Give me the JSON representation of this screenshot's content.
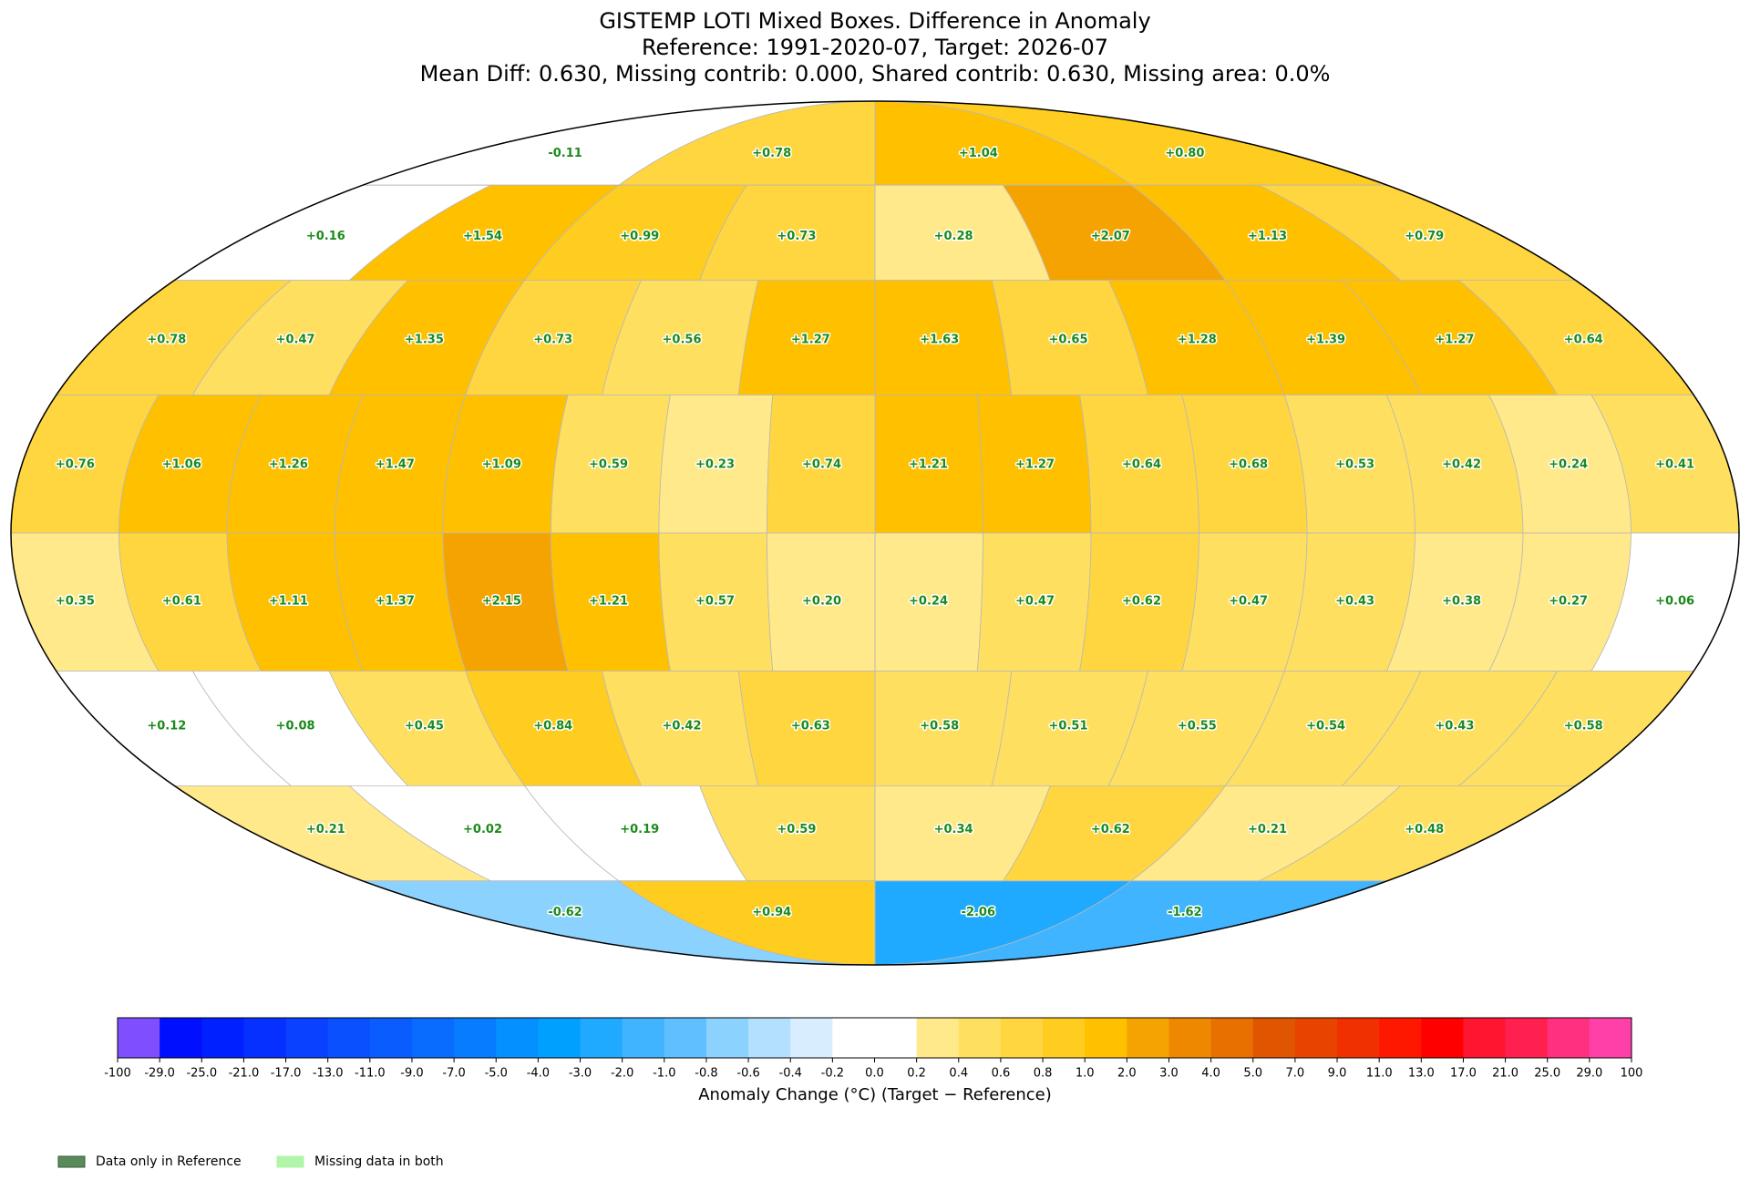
{
  "chart_data": {
    "type": "map",
    "title": "GISTEMP LOTI Mixed Boxes. Difference in Anomaly",
    "subtitle": [
      "Reference: 1991-2020-07, Target: 2026-07",
      "Mean Diff: 0.630, Missing contrib: 0.000, Shared contrib: 0.630, Missing area: 0.0%"
    ],
    "bands": [
      {
        "values": [
          -0.11,
          0.78,
          1.04,
          0.8
        ],
        "value_labels": [
          "-0.11",
          "+0.78",
          "+1.04",
          "+0.80"
        ]
      },
      {
        "values": [
          0.16,
          1.54,
          0.99,
          0.73,
          0.28,
          2.07,
          1.13,
          0.79
        ],
        "value_labels": [
          "+0.16",
          "+1.54",
          "+0.99",
          "+0.73",
          "+0.28",
          "+2.07",
          "+1.13",
          "+0.79"
        ]
      },
      {
        "values": [
          0.78,
          0.47,
          1.35,
          0.73,
          0.56,
          1.27,
          1.63,
          0.65,
          1.28,
          1.39,
          1.27,
          0.64
        ],
        "value_labels": [
          "+0.78",
          "+0.47",
          "+1.35",
          "+0.73",
          "+0.56",
          "+1.27",
          "+1.63",
          "+0.65",
          "+1.28",
          "+1.39",
          "+1.27",
          "+0.64"
        ]
      },
      {
        "values": [
          0.76,
          1.06,
          1.26,
          1.47,
          1.09,
          0.59,
          0.23,
          0.74,
          1.21,
          1.27,
          0.64,
          0.68,
          0.53,
          0.42,
          0.24,
          0.41
        ],
        "value_labels": [
          "+0.76",
          "+1.06",
          "+1.26",
          "+1.47",
          "+1.09",
          "+0.59",
          "+0.23",
          "+0.74",
          "+1.21",
          "+1.27",
          "+0.64",
          "+0.68",
          "+0.53",
          "+0.42",
          "+0.24",
          "+0.41"
        ]
      },
      {
        "values": [
          0.35,
          0.61,
          1.11,
          1.37,
          2.15,
          1.21,
          0.57,
          0.2,
          0.24,
          0.47,
          0.62,
          0.47,
          0.43,
          0.38,
          0.27,
          0.06
        ],
        "value_labels": [
          "+0.35",
          "+0.61",
          "+1.11",
          "+1.37",
          "+2.15",
          "+1.21",
          "+0.57",
          "+0.20",
          "+0.24",
          "+0.47",
          "+0.62",
          "+0.47",
          "+0.43",
          "+0.38",
          "+0.27",
          "+0.06"
        ]
      },
      {
        "values": [
          0.12,
          0.08,
          0.45,
          0.84,
          0.42,
          0.63,
          0.58,
          0.51,
          0.55,
          0.54,
          0.43,
          0.58
        ],
        "value_labels": [
          "+0.12",
          "+0.08",
          "+0.45",
          "+0.84",
          "+0.42",
          "+0.63",
          "+0.58",
          "+0.51",
          "+0.55",
          "+0.54",
          "+0.43",
          "+0.58"
        ]
      },
      {
        "values": [
          0.21,
          0.02,
          0.19,
          0.59,
          0.34,
          0.62,
          0.21,
          0.48
        ],
        "value_labels": [
          "+0.21",
          "+0.02",
          "+0.19",
          "+0.59",
          "+0.34",
          "+0.62",
          "+0.21",
          "+0.48"
        ]
      },
      {
        "values": [
          -0.62,
          0.94,
          -2.06,
          -1.62
        ],
        "value_labels": [
          "-0.62",
          "+0.94",
          "-2.06",
          "-1.62"
        ]
      }
    ],
    "colorbar": {
      "label": "Anomaly Change (°C) (Target − Reference)",
      "ticks": [
        -100,
        {
          "value": -29,
          "label": "-29.0"
        },
        {
          "value": -25,
          "label": "-25.0"
        },
        {
          "value": -21,
          "label": "-21.0"
        },
        {
          "value": -17,
          "label": "-17.0"
        },
        {
          "value": -13,
          "label": "-13.0"
        },
        {
          "value": -11,
          "label": "-11.0"
        },
        {
          "value": -9,
          "label": "-9.0"
        },
        {
          "value": -7,
          "label": "-7.0"
        },
        {
          "value": -5,
          "label": "-5.0"
        },
        {
          "value": -4,
          "label": "-4.0"
        },
        {
          "value": -3,
          "label": "-3.0"
        },
        {
          "value": -2,
          "label": "-2.0"
        },
        {
          "value": -1,
          "label": "-1.0"
        },
        -0.8,
        -0.6,
        -0.4,
        -0.2,
        {
          "value": 0,
          "label": "0.0"
        },
        0.2,
        0.4,
        0.6,
        0.8,
        {
          "value": 1,
          "label": "1.0"
        },
        {
          "value": 2,
          "label": "2.0"
        },
        {
          "value": 3,
          "label": "3.0"
        },
        {
          "value": 4,
          "label": "4.0"
        },
        {
          "value": 5,
          "label": "5.0"
        },
        {
          "value": 7,
          "label": "7.0"
        },
        {
          "value": 9,
          "label": "9.0"
        },
        {
          "value": 11,
          "label": "11.0"
        },
        {
          "value": 13,
          "label": "13.0"
        },
        {
          "value": 17,
          "label": "17.0"
        },
        {
          "value": 21,
          "label": "21.0"
        },
        {
          "value": 25,
          "label": "25.0"
        },
        {
          "value": 29,
          "label": "29.0"
        },
        100
      ],
      "colors": [
        "#7f4fff",
        "#0010ff",
        "#0020ff",
        "#0530ff",
        "#0a40ff",
        "#0a50ff",
        "#0a5cff",
        "#0a6cff",
        "#087cff",
        "#0590ff",
        "#00a0ff",
        "#20aaff",
        "#40b4ff",
        "#60c0ff",
        "#8cd2ff",
        "#b4e0ff",
        "#d8eeff",
        "#ffffff",
        "#ffffff",
        "#ffe98a",
        "#ffdf60",
        "#ffd640",
        "#ffcc20",
        "#ffc000",
        "#f5a300",
        "#ee8800",
        "#e87000",
        "#e05500",
        "#e84400",
        "#f03000",
        "#ff1800",
        "#ff0000",
        "#ff1530",
        "#ff2050",
        "#ff3080",
        "#ff40a8"
      ]
    },
    "legend": [
      {
        "name": "Data only in Reference",
        "color": "#5a8a5a"
      },
      {
        "name": "Missing data in both",
        "color": "#b0f5a8"
      }
    ]
  }
}
